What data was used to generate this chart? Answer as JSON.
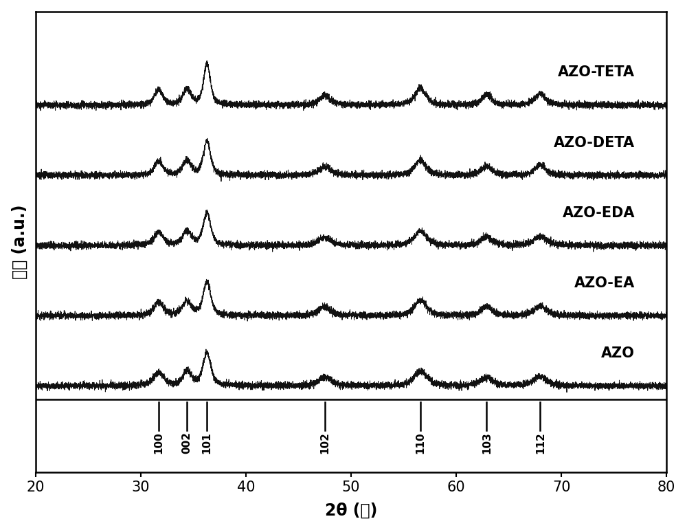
{
  "xlabel": "2θ (度)",
  "ylabel": "强度 (a.u.)",
  "xlim": [
    20,
    80
  ],
  "xticks": [
    20,
    30,
    40,
    50,
    60,
    70,
    80
  ],
  "labels": [
    "AZO",
    "AZO-EA",
    "AZO-EDA",
    "AZO-DETA",
    "AZO-TETA"
  ],
  "offsets": [
    0.0,
    1.5,
    3.0,
    4.5,
    6.0
  ],
  "peak_positions": [
    31.7,
    34.4,
    36.3,
    47.5,
    56.6,
    62.9,
    68.0
  ],
  "peak_labels": [
    "100",
    "002",
    "101",
    "102",
    "110",
    "103",
    "112"
  ],
  "background_color": "#ffffff",
  "line_color": "#111111",
  "label_fontsize": 15,
  "axis_fontsize": 17,
  "tick_fontsize": 15
}
